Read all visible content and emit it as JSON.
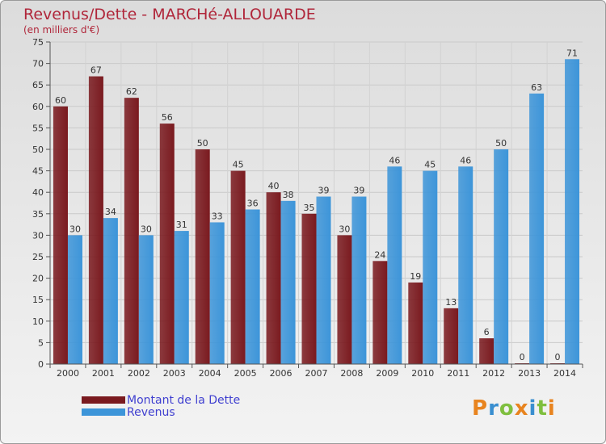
{
  "chart_data": {
    "type": "bar",
    "title": "Revenus/Dette - MARCHé-ALLOUARDE",
    "subtitle": "(en milliers d'€)",
    "categories": [
      "2000",
      "2001",
      "2002",
      "2003",
      "2004",
      "2005",
      "2006",
      "2007",
      "2008",
      "2009",
      "2010",
      "2011",
      "2012",
      "2013",
      "2014"
    ],
    "series": [
      {
        "name": "Montant de la Dette",
        "color": "#7a1a1f",
        "values": [
          60,
          67,
          62,
          56,
          50,
          45,
          40,
          35,
          30,
          24,
          19,
          13,
          6,
          0,
          0
        ]
      },
      {
        "name": "Revenus",
        "color": "#3d95d9",
        "values": [
          30,
          34,
          30,
          31,
          33,
          36,
          38,
          39,
          39,
          46,
          45,
          46,
          50,
          63,
          71
        ]
      }
    ],
    "ylim": [
      0,
      75
    ],
    "ytick_step": 5,
    "grid": true,
    "legend_position": "bottom-left"
  },
  "brand": {
    "logo_text": "Proxiti",
    "logo_colors": [
      "#e8841f",
      "#3a8fd0",
      "#7fbf3f",
      "#e8841f",
      "#3a8fd0",
      "#7fbf3f",
      "#e8841f"
    ]
  }
}
